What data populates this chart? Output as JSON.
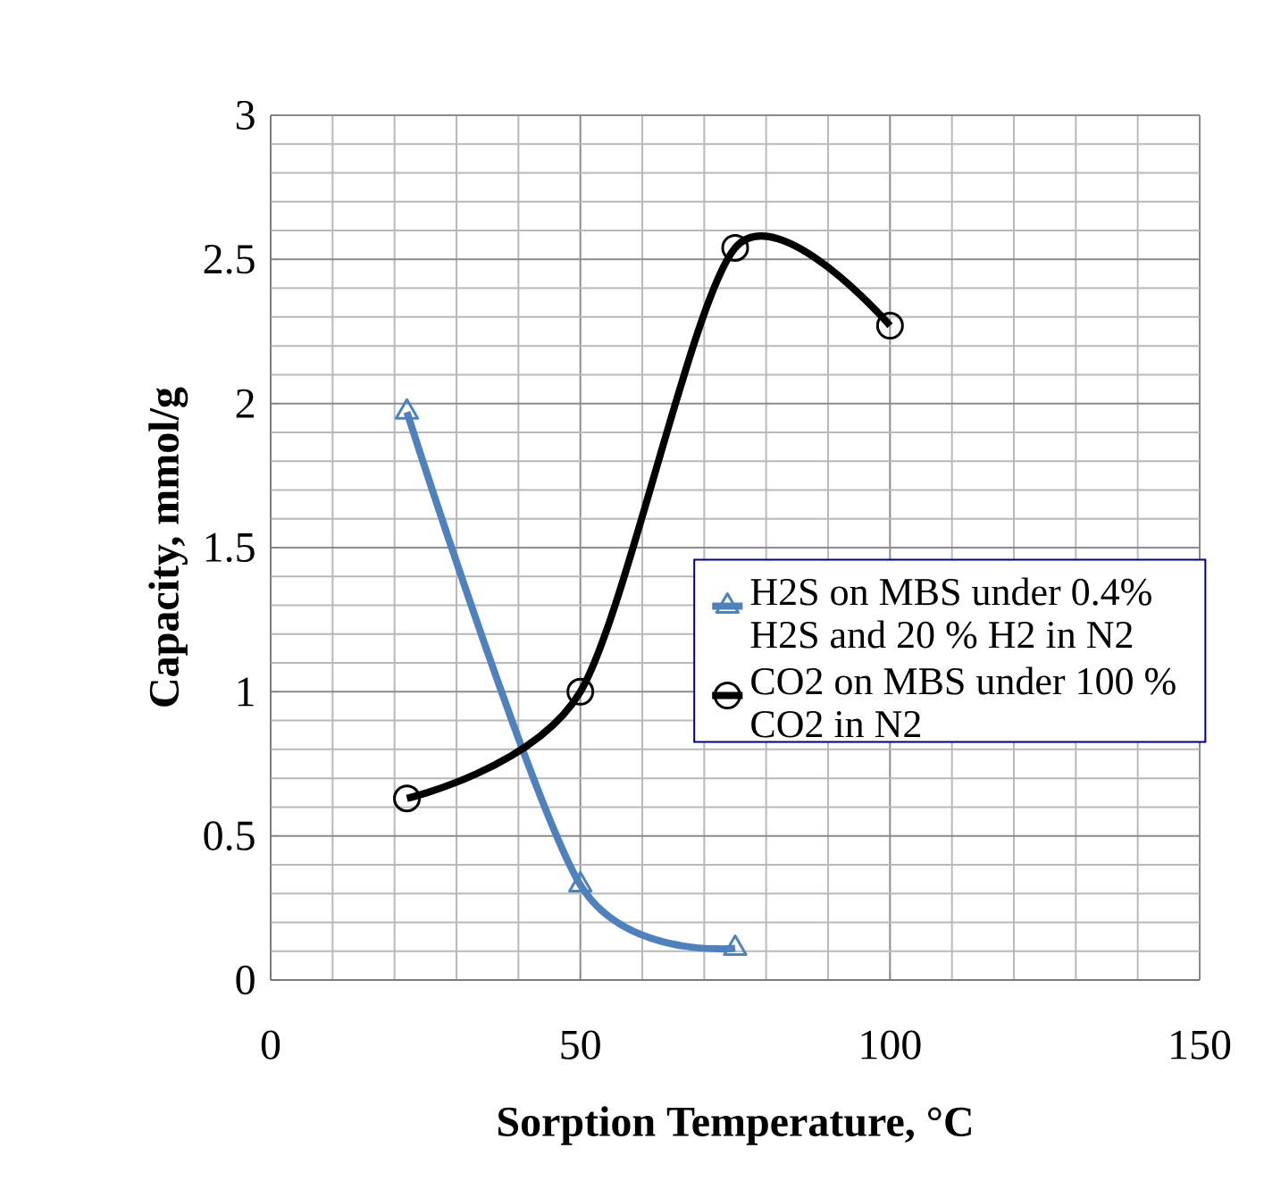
{
  "chart_data": {
    "type": "line",
    "xlabel": "Sorption Temperature, °C",
    "ylabel": "Capacity, mmol/g",
    "xlim": [
      0,
      150
    ],
    "xticks": [
      0,
      50,
      100,
      150
    ],
    "ylim": [
      0,
      3
    ],
    "yticks": [
      0,
      0.5,
      1,
      1.5,
      2,
      2.5,
      3
    ],
    "grid": true,
    "legend": "right",
    "marker": "circle",
    "line_style": "solid",
    "series": [
      {
        "name": "H2S on MBS under 0.4% H2S and 20 % H2 in N2",
        "color": "#4f81bd",
        "marker": "triangle",
        "x": [
          22,
          50,
          75
        ],
        "values": [
          1.97,
          0.33,
          0.11
        ]
      },
      {
        "name": "CO2 on MBS under 100 % CO2 in N2",
        "color": "#000000",
        "x": [
          22,
          50,
          75,
          100
        ],
        "values": [
          0.63,
          1.0,
          2.54,
          2.27
        ]
      }
    ]
  }
}
